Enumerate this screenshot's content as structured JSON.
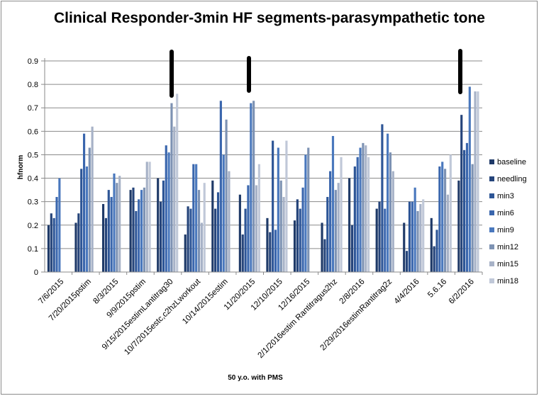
{
  "chart_data": {
    "type": "bar",
    "title": "Clinical  Responder-3min HF segments-parasympathetic tone",
    "xlabel": "50 y.o. with PMS",
    "ylabel": "hfnorm",
    "ylim": [
      0,
      0.9
    ],
    "yticks": [
      "0",
      "0.1",
      "0.2",
      "0.3",
      "0.4",
      "0.5",
      "0.6",
      "0.7",
      "0.8",
      "0.9"
    ],
    "grid": true,
    "legend_position": "right",
    "categories": [
      "7/6/2015",
      "7/20/2015pstim",
      "8/3/2015",
      "9/9/2015pstim",
      "9/15/2015estimLantitrag30",
      "10/7/2015estc,c2hzLworkout",
      "10/14/2015estim",
      "11/20/2015",
      "12/10/2015",
      "12/16/2015",
      "2/1/2016estim Rantitragus2hz",
      "2/8/2016",
      "2/29/2016estimRantitrag2z",
      "4/4/2016",
      "5.6.16",
      "6/2/2016"
    ],
    "series": [
      {
        "name": "baseline",
        "color": "#1f3a68",
        "values": [
          0.2,
          0.21,
          0.29,
          0.35,
          0.4,
          0.16,
          0.39,
          0.33,
          0.23,
          0.22,
          0.21,
          0.4,
          0.27,
          0.21,
          0.23,
          0.39
        ]
      },
      {
        "name": "needling",
        "color": "#25447a",
        "values": [
          0.25,
          0.25,
          0.23,
          0.36,
          0.3,
          0.28,
          0.27,
          0.16,
          0.17,
          0.31,
          0.14,
          0.2,
          0.3,
          0.09,
          0.11,
          0.67
        ]
      },
      {
        "name": "min3",
        "color": "#2d5596",
        "values": [
          0.23,
          0.44,
          0.35,
          0.26,
          0.39,
          0.27,
          0.34,
          0.27,
          0.56,
          0.27,
          0.32,
          0.45,
          0.63,
          0.3,
          0.18,
          0.52
        ]
      },
      {
        "name": "min6",
        "color": "#3a66ad",
        "values": [
          0.32,
          0.59,
          0.32,
          0.31,
          0.54,
          0.46,
          0.73,
          0.37,
          0.18,
          0.36,
          0.43,
          0.49,
          0.27,
          0.3,
          0.45,
          0.55
        ]
      },
      {
        "name": "min9",
        "color": "#4a78bd",
        "values": [
          0.4,
          0.45,
          0.42,
          0.35,
          0.51,
          0.46,
          0.5,
          0.72,
          0.53,
          0.5,
          0.58,
          0.53,
          0.59,
          0.36,
          0.47,
          0.79
        ]
      },
      {
        "name": "min12",
        "color": "#7d92b3",
        "values": [
          null,
          0.53,
          0.38,
          0.36,
          0.72,
          0.35,
          0.65,
          0.73,
          0.39,
          0.53,
          0.35,
          0.55,
          0.51,
          0.26,
          0.44,
          0.46
        ]
      },
      {
        "name": "min15",
        "color": "#a7b2c7",
        "values": [
          null,
          0.62,
          0.41,
          0.47,
          0.62,
          0.21,
          0.43,
          0.37,
          0.32,
          null,
          0.38,
          0.54,
          0.43,
          0.29,
          0.33,
          0.77
        ]
      },
      {
        "name": "min18",
        "color": "#c0c8d8",
        "values": [
          null,
          null,
          null,
          0.47,
          0.76,
          0.38,
          null,
          0.46,
          0.56,
          null,
          0.49,
          0.49,
          null,
          0.31,
          0.5,
          0.77
        ]
      }
    ],
    "annotations": [
      "marker-bar",
      "marker-bar",
      "marker-bar"
    ]
  }
}
